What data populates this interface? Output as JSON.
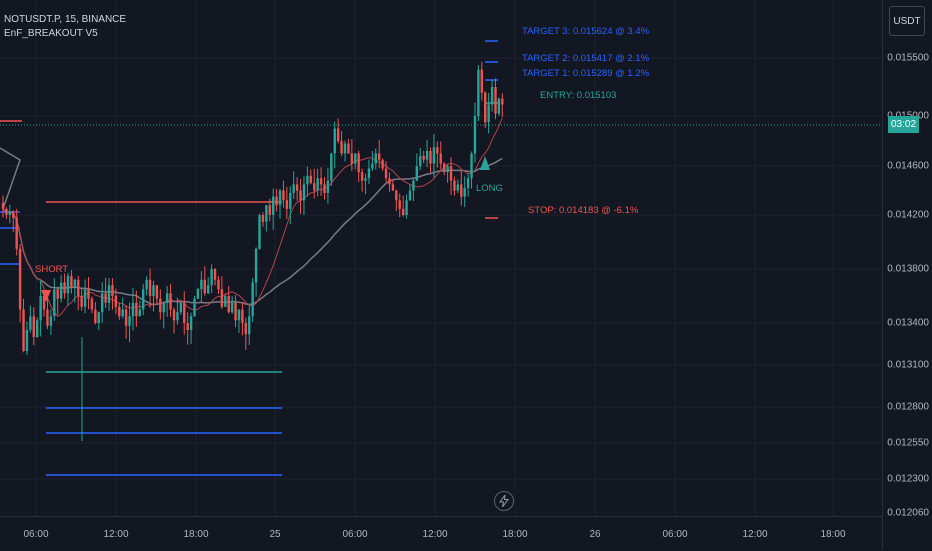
{
  "legend": {
    "symbol_line": "NOTUSDT.P, 15, BINANCE",
    "indicator": "EnF_BREAKOUT V5"
  },
  "currency_button": "USDT",
  "current_price_badge": "03:02",
  "price_axis": [
    "0.015500",
    "0.015000",
    "0.014600",
    "0.014200",
    "0.013800",
    "0.013400",
    "0.013100",
    "0.012800",
    "0.012550",
    "0.012300",
    "0.012060"
  ],
  "time_axis": [
    "06:00",
    "12:00",
    "18:00",
    "25",
    "06:00",
    "12:00",
    "18:00",
    "26",
    "06:00",
    "12:00",
    "18:00"
  ],
  "annotations": {
    "target3": "TARGET 3: 0.015624 @ 3.4%",
    "target2": "TARGET 2: 0.015417 @ 2.1%",
    "target1": "TARGET 1: 0.015289 @ 1.2%",
    "entry": "ENTRY: 0.015103",
    "stop": "STOP: 0.014183 @ -6.1%",
    "long": "LONG",
    "short": "SHORT"
  },
  "colors": {
    "background": "#131722",
    "up": "#26a69a",
    "down": "#ef5350",
    "target": "#2962ff",
    "entry": "#26a69a",
    "stop": "#ef5350",
    "ma_slow": "#787b86",
    "ma_fast": "#b2444a"
  },
  "chart_data": {
    "type": "candlestick",
    "symbol": "NOTUSDT.P",
    "interval": "15",
    "exchange": "BINANCE",
    "close_path": [
      0.01425,
      0.0142,
      0.01423,
      0.01418,
      0.01395,
      0.0135,
      0.0132,
      0.01335,
      0.01345,
      0.0133,
      0.01342,
      0.0136,
      0.0135,
      0.01338,
      0.01345,
      0.01365,
      0.01358,
      0.0137,
      0.01362,
      0.01375,
      0.01366,
      0.01372,
      0.0136,
      0.01352,
      0.01365,
      0.01358,
      0.0135,
      0.0134,
      0.01348,
      0.01362,
      0.01355,
      0.01368,
      0.0136,
      0.01352,
      0.01345,
      0.0135,
      0.01338,
      0.01345,
      0.01355,
      0.01345,
      0.0135,
      0.01365,
      0.01372,
      0.0136,
      0.01368,
      0.01358,
      0.01348,
      0.01355,
      0.01362,
      0.0135,
      0.01342,
      0.01348,
      0.01355,
      0.0134,
      0.01335,
      0.01345,
      0.01358,
      0.01365,
      0.01372,
      0.01362,
      0.01368,
      0.0138,
      0.01372,
      0.01365,
      0.01352,
      0.0136,
      0.01348,
      0.01355,
      0.01342,
      0.0135,
      0.0134,
      0.01332,
      0.01345,
      0.0137,
      0.01395,
      0.0142,
      0.01415,
      0.01428,
      0.0142,
      0.01435,
      0.01428,
      0.0144,
      0.01432,
      0.01425,
      0.01438,
      0.01445,
      0.0144,
      0.01432,
      0.01445,
      0.01452,
      0.01446,
      0.0144,
      0.0145,
      0.01445,
      0.01438,
      0.01448,
      0.0147,
      0.0149,
      0.0148,
      0.0147,
      0.01478,
      0.0147,
      0.01462,
      0.0147,
      0.01455,
      0.01448,
      0.0145,
      0.01458,
      0.01462,
      0.0147,
      0.01465,
      0.01458,
      0.0145,
      0.01445,
      0.0144,
      0.01432,
      0.01425,
      0.0142,
      0.01432,
      0.0144,
      0.01448,
      0.0146,
      0.01468,
      0.01465,
      0.01472,
      0.01462,
      0.01475,
      0.0147,
      0.01462,
      0.01455,
      0.0146,
      0.01448,
      0.0144,
      0.01445,
      0.01435,
      0.01442,
      0.0145,
      0.0147,
      0.015,
      0.0154,
      0.0152,
      0.01495,
      0.0151,
      0.01525,
      0.01502,
      0.01515,
      0.0151
    ],
    "long_entry": 0.015103,
    "targets": [
      0.015289,
      0.015417,
      0.015624
    ],
    "stop": 0.014183
  }
}
